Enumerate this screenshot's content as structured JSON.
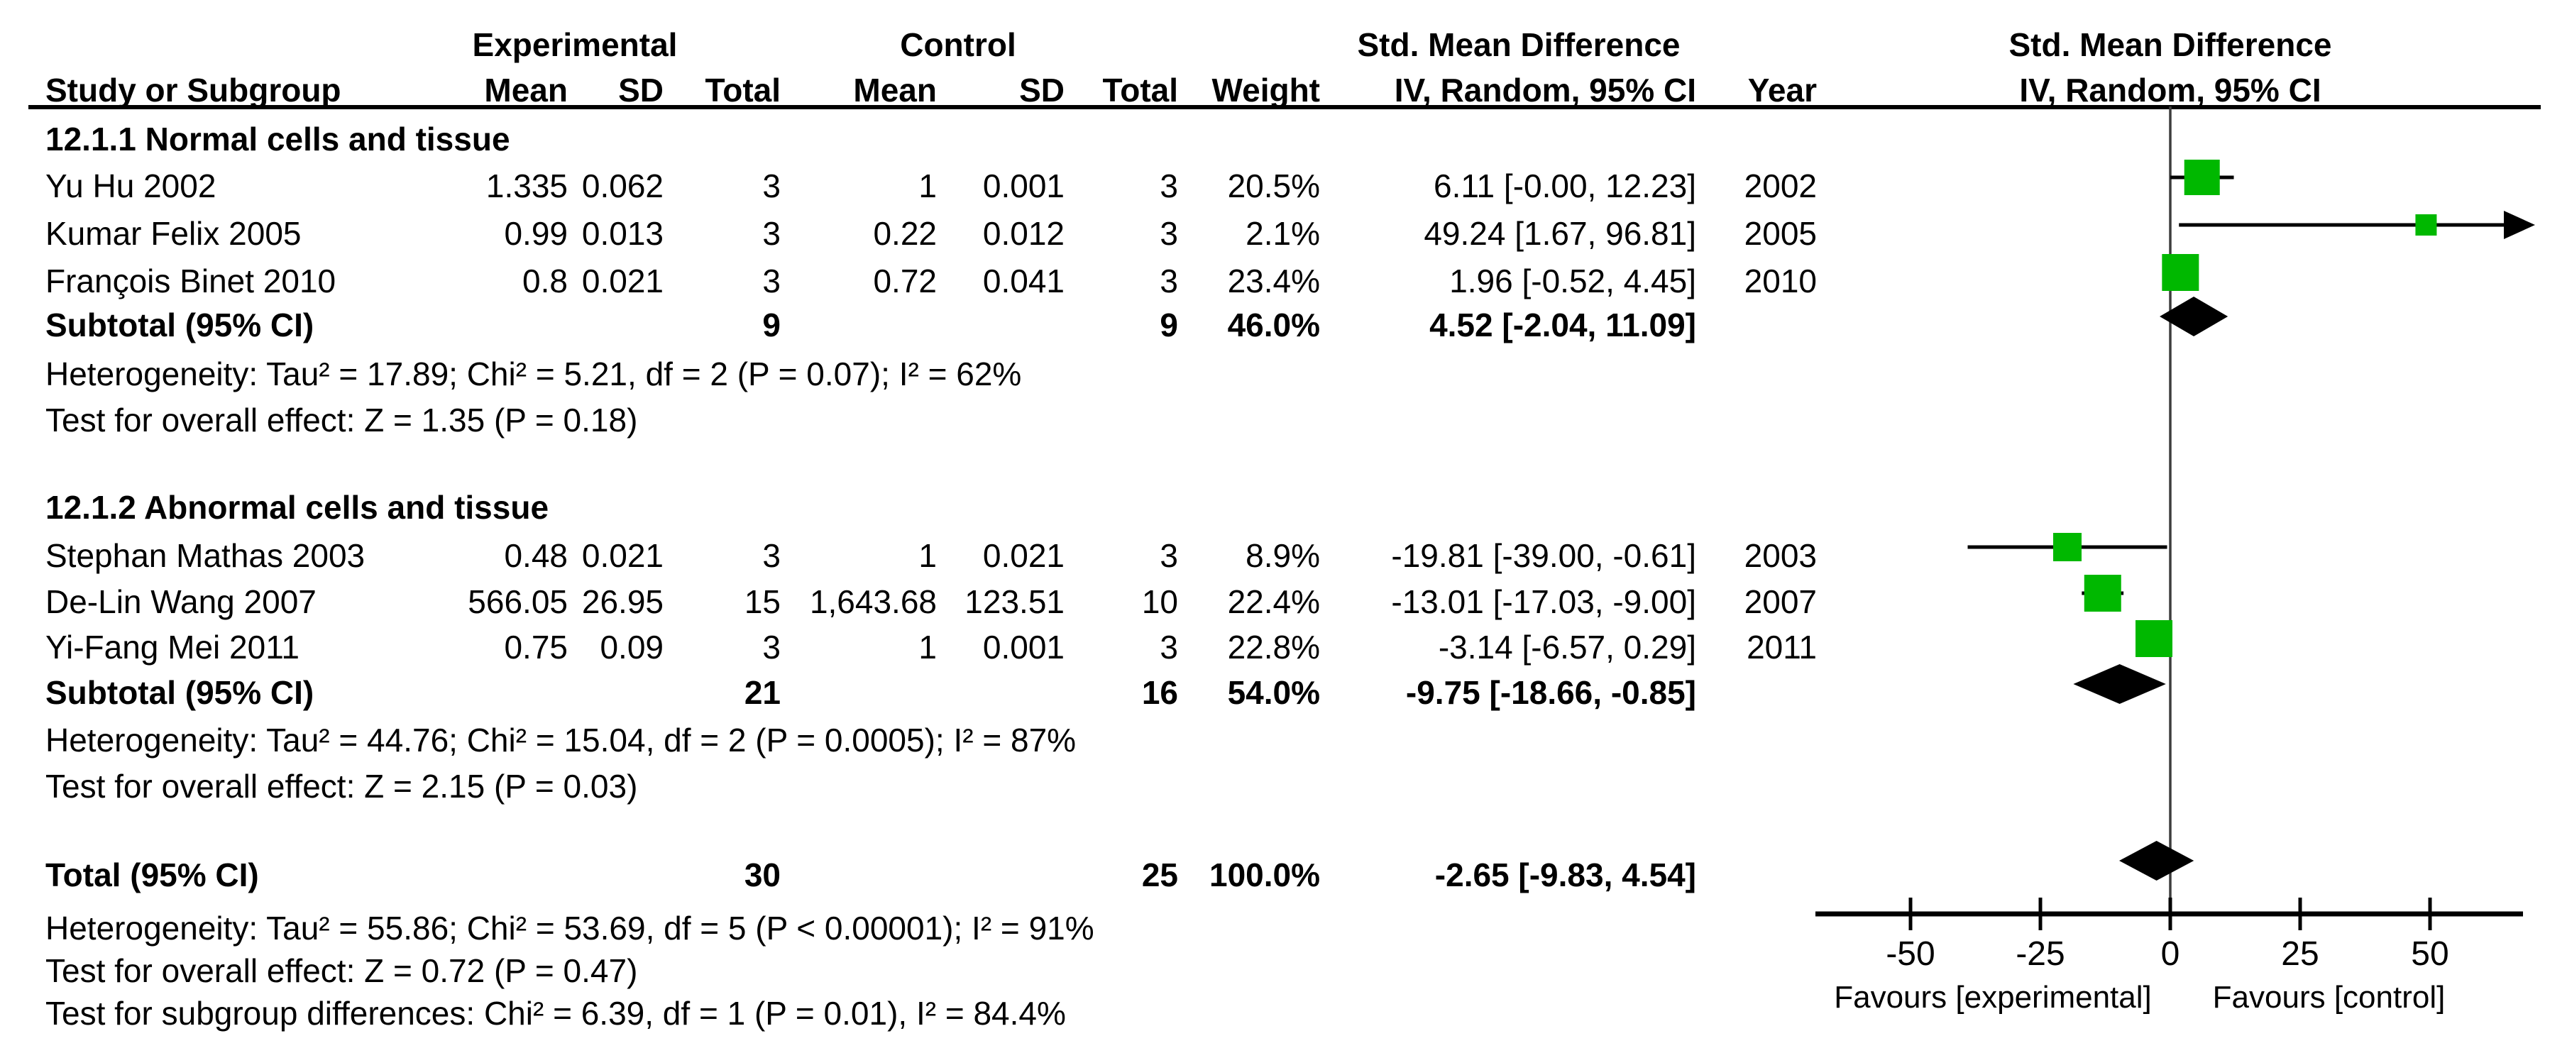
{
  "headers": {
    "experimental": "Experimental",
    "control": "Control",
    "smd_table": "Std. Mean Difference",
    "smd_plot_line1": "Std. Mean Difference",
    "smd_plot_line2": "IV, Random, 95% CI",
    "study_or_subgroup": "Study or Subgroup",
    "mean_exp": "Mean",
    "sd_exp": "SD",
    "total_exp": "Total",
    "mean_ctrl": "Mean",
    "sd_ctrl": "SD",
    "total_ctrl": "Total",
    "weight": "Weight",
    "iv_random_ci": "IV, Random, 95% CI",
    "year": "Year"
  },
  "chart_data": {
    "type": "forest",
    "effect_measure": "Std. Mean Difference",
    "method": "IV, Random, 95% CI",
    "marker_color": "#00b800",
    "axis": {
      "ticks": [
        -50,
        -25,
        0,
        25,
        50
      ],
      "xmin": -68,
      "xmax": 68,
      "favours_left": "Favours [experimental]",
      "favours_right": "Favours [control]"
    },
    "subgroups": [
      {
        "title": "12.1.1 Normal cells and tissue",
        "studies": [
          {
            "name": "Yu Hu 2002",
            "exp_mean": "1.335",
            "exp_sd": "0.062",
            "exp_total": "3",
            "ctrl_mean": "1",
            "ctrl_sd": "0.001",
            "ctrl_total": "3",
            "weight": "20.5%",
            "weight_value": 20.5,
            "ci_text": "6.11 [-0.00, 12.23]",
            "year": "2002",
            "est": 6.11,
            "lo": -0.0,
            "hi": 12.23
          },
          {
            "name": "Kumar Felix 2005",
            "exp_mean": "0.99",
            "exp_sd": "0.013",
            "exp_total": "3",
            "ctrl_mean": "0.22",
            "ctrl_sd": "0.012",
            "ctrl_total": "3",
            "weight": "2.1%",
            "weight_value": 2.1,
            "ci_text": "49.24 [1.67, 96.81]",
            "year": "2005",
            "est": 49.24,
            "lo": 1.67,
            "hi": 96.81
          },
          {
            "name": "François Binet 2010",
            "exp_mean": "0.8",
            "exp_sd": "0.021",
            "exp_total": "3",
            "ctrl_mean": "0.72",
            "ctrl_sd": "0.041",
            "ctrl_total": "3",
            "weight": "23.4%",
            "weight_value": 23.4,
            "ci_text": "1.96 [-0.52, 4.45]",
            "year": "2010",
            "est": 1.96,
            "lo": -0.52,
            "hi": 4.45
          }
        ],
        "subtotal": {
          "label": "Subtotal (95% CI)",
          "exp_total": "9",
          "ctrl_total": "9",
          "weight": "46.0%",
          "ci_text": "4.52 [-2.04, 11.09]",
          "est": 4.52,
          "lo": -2.04,
          "hi": 11.09
        },
        "heterogeneity": "Heterogeneity: Tau² = 17.89; Chi² = 5.21, df = 2 (P = 0.07); I² = 62%",
        "overall_effect": "Test for overall effect: Z = 1.35 (P = 0.18)"
      },
      {
        "title": "12.1.2 Abnormal cells and tissue",
        "studies": [
          {
            "name": "Stephan Mathas 2003",
            "exp_mean": "0.48",
            "exp_sd": "0.021",
            "exp_total": "3",
            "ctrl_mean": "1",
            "ctrl_sd": "0.021",
            "ctrl_total": "3",
            "weight": "8.9%",
            "weight_value": 8.9,
            "ci_text": "-19.81 [-39.00, -0.61]",
            "year": "2003",
            "est": -19.81,
            "lo": -39.0,
            "hi": -0.61
          },
          {
            "name": "De-Lin Wang 2007",
            "exp_mean": "566.05",
            "exp_sd": "26.95",
            "exp_total": "15",
            "ctrl_mean": "1,643.68",
            "ctrl_sd": "123.51",
            "ctrl_total": "10",
            "weight": "22.4%",
            "weight_value": 22.4,
            "ci_text": "-13.01 [-17.03, -9.00]",
            "year": "2007",
            "est": -13.01,
            "lo": -17.03,
            "hi": -9.0
          },
          {
            "name": "Yi-Fang Mei 2011",
            "exp_mean": "0.75",
            "exp_sd": "0.09",
            "exp_total": "3",
            "ctrl_mean": "1",
            "ctrl_sd": "0.001",
            "ctrl_total": "3",
            "weight": "22.8%",
            "weight_value": 22.8,
            "ci_text": "-3.14 [-6.57, 0.29]",
            "year": "2011",
            "est": -3.14,
            "lo": -6.57,
            "hi": 0.29
          }
        ],
        "subtotal": {
          "label": "Subtotal (95% CI)",
          "exp_total": "21",
          "ctrl_total": "16",
          "weight": "54.0%",
          "ci_text": "-9.75 [-18.66, -0.85]",
          "est": -9.75,
          "lo": -18.66,
          "hi": -0.85
        },
        "heterogeneity": "Heterogeneity: Tau² = 44.76; Chi² = 15.04, df = 2 (P = 0.0005); I² = 87%",
        "overall_effect": "Test for overall effect: Z = 2.15 (P = 0.03)"
      }
    ],
    "total": {
      "label": "Total (95% CI)",
      "exp_total": "30",
      "ctrl_total": "25",
      "weight": "100.0%",
      "ci_text": "-2.65 [-9.83, 4.54]",
      "est": -2.65,
      "lo": -9.83,
      "hi": 4.54
    },
    "total_heterogeneity": "Heterogeneity: Tau² = 55.86; Chi² = 53.69, df = 5 (P < 0.00001); I² = 91%",
    "total_overall_effect": "Test for overall effect: Z = 0.72 (P = 0.47)",
    "subgroup_differences": "Test for subgroup differences: Chi² = 6.39, df = 1 (P = 0.01), I² = 84.4%"
  }
}
